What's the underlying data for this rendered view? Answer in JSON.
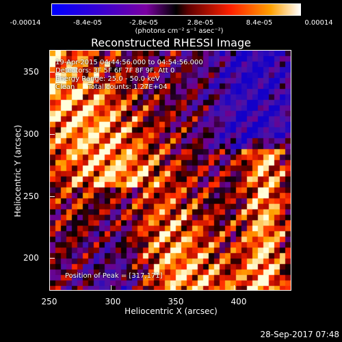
{
  "colorbar": {
    "ticks": [
      "-0.00014",
      "-8.4e-05",
      "-2.8e-05",
      "2.8e-05",
      "8.4e-05",
      "0.00014"
    ],
    "unit_label": "(photons cm⁻² s⁻¹ asec⁻²)"
  },
  "title": "Reconstructed RHESSI Image",
  "info": {
    "time_range": "19-Apr-2015 04:44:56.000 to 04:54:56.000",
    "detectors": "Detectors: 3F 5F 6F 7F 8F 9F, Att 0",
    "energy": "Energy Range: 25.0 - 50.0 keV",
    "method": "Clean      Total counts: 1.27E+04",
    "peak": "Position of Peak = [317,171]"
  },
  "chart_data": {
    "type": "heatmap",
    "title": "Reconstructed RHESSI Image",
    "xlabel": "Heliocentric X (arcsec)",
    "ylabel": "Heliocentric Y (arcsec)",
    "xlim": [
      250,
      446
    ],
    "ylim": [
      172,
      367
    ],
    "x_ticks": [
      "250",
      "300",
      "350",
      "400"
    ],
    "y_ticks": [
      "200",
      "250",
      "300",
      "350"
    ],
    "color_range": [
      -0.00014,
      0.00014
    ],
    "colormap": [
      "#0000ff",
      "#4000c0",
      "#800080",
      "#000000",
      "#ff0000",
      "#ffa000",
      "#ffffff"
    ]
  },
  "timestamp": "28-Sep-2017 07:48"
}
